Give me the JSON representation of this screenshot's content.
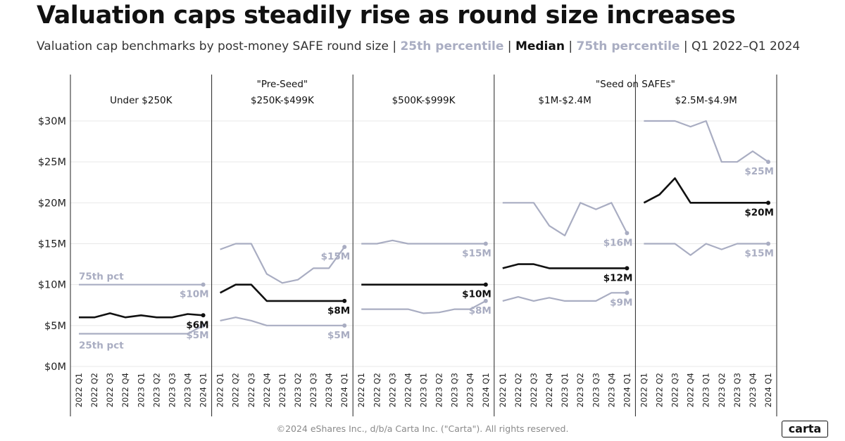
{
  "title": "Valuation caps steadily rise as round size increases",
  "subtitle": {
    "prefix": "Valuation cap benchmarks by post-money SAFE round size | ",
    "p25": "25th percentile",
    "sep1": " | ",
    "median": "Median",
    "sep2": " | ",
    "p75": "75th percentile",
    "suffix": " | Q1 2022–Q1 2024"
  },
  "footer": "©2024 eShares Inc., d/b/a Carta Inc. (\"Carta\"). All rights reserved.",
  "logo": "carta",
  "colors": {
    "percentile": "#a9adc2",
    "median": "#111111",
    "grid": "#e8e8e8",
    "divider": "#222222"
  },
  "chart_data": {
    "type": "line",
    "ylim": [
      0,
      30
    ],
    "yticks": [
      0,
      5,
      10,
      15,
      20,
      25,
      30
    ],
    "ytick_labels": [
      "$0M",
      "$5M",
      "$10M",
      "$15M",
      "$20M",
      "$25M",
      "$30M"
    ],
    "quarters": [
      "2022 Q1",
      "2022 Q2",
      "2022 Q3",
      "2022 Q4",
      "2023 Q1",
      "2023 Q2",
      "2023 Q3",
      "2023 Q4",
      "2024 Q1"
    ],
    "group_labels": [
      {
        "text": "\"Pre-Seed\"",
        "from_panel": 0,
        "to_panel": 2
      },
      {
        "text": "\"Seed on SAFEs\"",
        "from_panel": 3,
        "to_panel": 4
      }
    ],
    "panels": [
      {
        "name": "Under $250K",
        "p75": [
          10,
          10,
          10,
          10,
          10,
          10,
          10,
          10,
          10
        ],
        "median": [
          6,
          6,
          6.5,
          6,
          6.25,
          6,
          6,
          6.4,
          6.25
        ],
        "p25": [
          4,
          4,
          4,
          4,
          4,
          4,
          4,
          4,
          5
        ],
        "end_labels": {
          "p75": "$10M",
          "median": "$6M",
          "p25": "$5M"
        },
        "series_annotations": {
          "p75": "75th pct",
          "p25": "25th pct"
        }
      },
      {
        "name": "$250K-$499K",
        "p75": [
          14.3,
          15,
          15,
          11.3,
          10.2,
          10.6,
          12,
          12,
          14.6
        ],
        "median": [
          9,
          10,
          10,
          8,
          8,
          8,
          8,
          8,
          8
        ],
        "p25": [
          5.6,
          6,
          5.6,
          5,
          5,
          5,
          5,
          5,
          5
        ],
        "end_labels": {
          "p75": "$15M",
          "median": "$8M",
          "p25": "$5M"
        }
      },
      {
        "name": "$500K-$999K",
        "p75": [
          15,
          15,
          15.4,
          15,
          15,
          15,
          15,
          15,
          15
        ],
        "median": [
          10,
          10,
          10,
          10,
          10,
          10,
          10,
          10,
          10
        ],
        "p25": [
          7,
          7,
          7,
          7,
          6.5,
          6.6,
          7,
          7,
          8
        ],
        "end_labels": {
          "p75": "$15M",
          "median": "$10M",
          "p25": "$8M"
        }
      },
      {
        "name": "$1M-$2.4M",
        "p75": [
          20,
          20,
          20,
          17.2,
          16,
          20,
          19.2,
          20,
          16.3
        ],
        "median": [
          12,
          12.5,
          12.5,
          12,
          12,
          12,
          12,
          12,
          12
        ],
        "p25": [
          8,
          8.5,
          8,
          8.4,
          8,
          8,
          8,
          9,
          9
        ],
        "end_labels": {
          "p75": "$16M",
          "median": "$12M",
          "p25": "$9M"
        }
      },
      {
        "name": "$2.5M-$4.9M",
        "p75": [
          30,
          30,
          30,
          29.3,
          30,
          25,
          25,
          26.3,
          25
        ],
        "median": [
          20,
          21,
          23,
          20,
          20,
          20,
          20,
          20,
          20
        ],
        "p25": [
          15,
          15,
          15,
          13.6,
          15,
          14.3,
          15,
          15,
          15
        ],
        "end_labels": {
          "p75": "$25M",
          "median": "$20M",
          "p25": "$15M"
        }
      }
    ]
  }
}
